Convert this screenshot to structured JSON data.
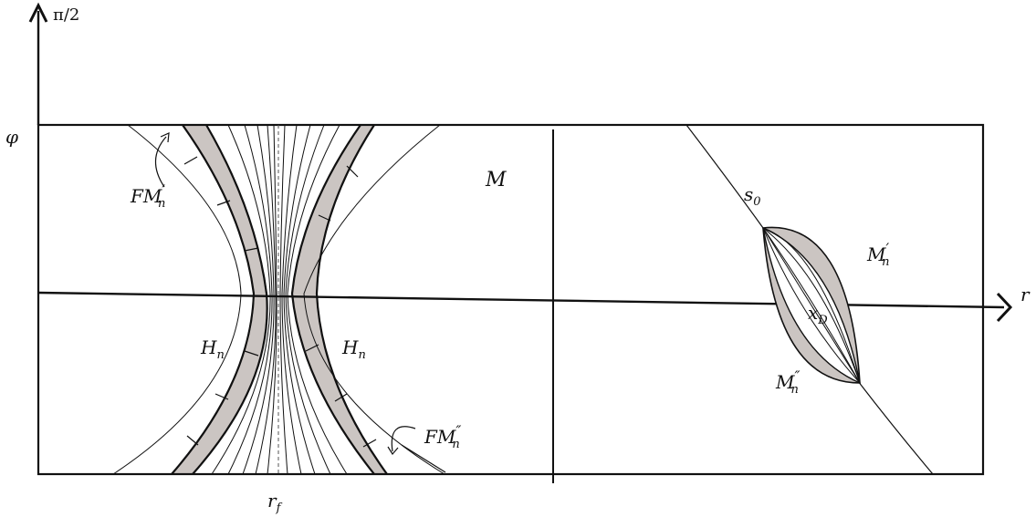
{
  "axes": {
    "vertical_top_label": "π/2",
    "vertical_label": "φ",
    "horizontal_label": "r",
    "bottom_tick_label": "r",
    "bottom_tick_sub": "f"
  },
  "regions": {
    "region_M": "M",
    "left_hyperbola_label": "H",
    "left_hyperbola_sub": "n",
    "right_hyperbola_label": "H",
    "right_hyperbola_sub": "n",
    "fm_prime_main": "FM",
    "fm_prime_sub": "n",
    "fm_prime_mark": "′",
    "fm_dprime_main": "FM",
    "fm_dprime_sub": "n",
    "fm_dprime_mark": "″",
    "s0_main": "s",
    "s0_sub": "0",
    "mprime_main": "M",
    "mprime_sub": "n",
    "mprime_mark": "′",
    "mdprime_main": "M",
    "mdprime_sub": "n",
    "mdprime_mark": "″",
    "xD_main": "x",
    "xD_sub": "D"
  },
  "colors": {
    "shade": "#cbc5c2",
    "ink": "#111111"
  }
}
